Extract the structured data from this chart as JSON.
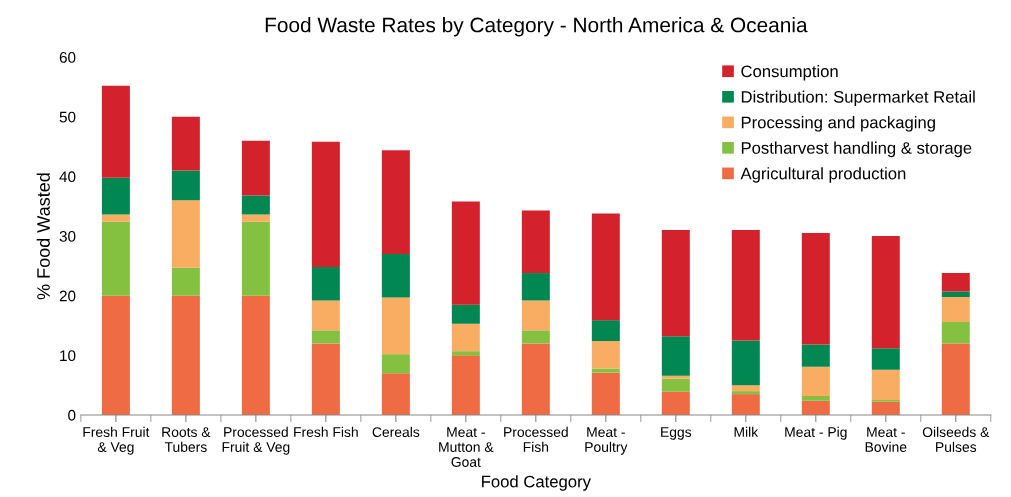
{
  "chart_data": {
    "type": "bar",
    "stacked": true,
    "title": "Food Waste Rates by Category - North America & Oceania",
    "xlabel": "Food Category",
    "ylabel": "% Food Wasted",
    "categories": [
      "Fresh Fruit\n& Veg",
      "Roots &\nTubers",
      "Processed\nFruit & Veg",
      "Fresh Fish",
      "Cereals",
      "Meat -\nMutton &\nGoat",
      "Processed\nFish",
      "Meat -\nPoultry",
      "Eggs",
      "Milk",
      "Meat - Pig",
      "Meat -\nBovine",
      "Oilseeds &\nPulses"
    ],
    "series": [
      {
        "name": "Agricultural production",
        "color": "#ee6b43",
        "values": [
          20,
          20,
          20,
          12,
          7,
          10,
          12,
          7.1,
          3.9,
          3.5,
          2.4,
          2.2,
          12
        ]
      },
      {
        "name": "Postharvest handling & storage",
        "color": "#84c141",
        "values": [
          12.4,
          4.7,
          12.4,
          2.2,
          3.2,
          0.7,
          2.2,
          0.7,
          2.2,
          0.5,
          0.8,
          0.3,
          3.6
        ]
      },
      {
        "name": "Processing and packaging",
        "color": "#f8ad63",
        "values": [
          1.2,
          11.3,
          1.2,
          5,
          9.5,
          4.6,
          5,
          4.6,
          0.5,
          1,
          4.9,
          5.1,
          4.2
        ]
      },
      {
        "name": "Distribution: Supermarket Retail",
        "color": "#008752",
        "values": [
          6.2,
          5,
          3.2,
          5.6,
          7.3,
          3.2,
          4.6,
          3.5,
          6.6,
          7.5,
          3.7,
          3.6,
          0.9
        ]
      },
      {
        "name": "Consumption",
        "color": "#d4222d",
        "values": [
          15.4,
          9,
          9.2,
          21,
          17.4,
          17.3,
          10.5,
          17.9,
          17.8,
          18.5,
          18.7,
          18.8,
          3.1
        ]
      }
    ],
    "ylim": [
      0,
      60
    ],
    "yticks": [
      0,
      10,
      20,
      30,
      40,
      50,
      60
    ],
    "grid": false,
    "legend": "top right"
  }
}
